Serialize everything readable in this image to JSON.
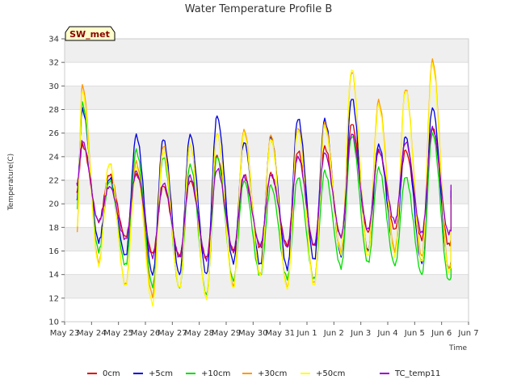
{
  "chart_data": {
    "type": "line",
    "title": "Water Temperature Profile B",
    "xlabel": "Time",
    "ylabel": "Temperature(C)",
    "station_label": "SW_met",
    "ylim": [
      10,
      34
    ],
    "yticks": [
      10,
      12,
      14,
      16,
      18,
      20,
      22,
      24,
      26,
      28,
      30,
      32,
      34
    ],
    "xlim": [
      "2023-05-23",
      "2023-06-07"
    ],
    "xticks": [
      {
        "date": "2023-05-23",
        "label": "May 23"
      },
      {
        "date": "2023-05-24",
        "label": "May 24"
      },
      {
        "date": "2023-05-25",
        "label": "May 25"
      },
      {
        "date": "2023-05-26",
        "label": "May 26"
      },
      {
        "date": "2023-05-27",
        "label": "May 27"
      },
      {
        "date": "2023-05-28",
        "label": "May 28"
      },
      {
        "date": "2023-05-29",
        "label": "May 29"
      },
      {
        "date": "2023-05-30",
        "label": "May 30"
      },
      {
        "date": "2023-05-31",
        "label": "May 31"
      },
      {
        "date": "2023-06-01",
        "label": "Jun 1"
      },
      {
        "date": "2023-06-02",
        "label": "Jun 2"
      },
      {
        "date": "2023-06-03",
        "label": "Jun 3"
      },
      {
        "date": "2023-06-04",
        "label": "Jun 4"
      },
      {
        "date": "2023-06-05",
        "label": "Jun 5"
      },
      {
        "date": "2023-06-06",
        "label": "Jun 6"
      },
      {
        "date": "2023-06-07",
        "label": "Jun 7"
      }
    ],
    "grid": true,
    "legend_position": "bottom",
    "series": [
      {
        "name": "0cm",
        "color": "#dd0000",
        "daily_min": [
          18.5,
          17.2,
          15.8,
          15.6,
          15.4,
          16.0,
          16.3,
          16.5,
          16.4,
          17.2,
          17.6,
          17.8,
          17.0,
          16.5,
          16.5
        ],
        "daily_max": [
          25.0,
          22.5,
          22.5,
          21.5,
          22.0,
          24.0,
          22.5,
          22.5,
          24.5,
          24.8,
          26.8,
          24.5,
          24.5,
          26.5,
          20.5
        ],
        "start": 21.0,
        "end": 20.0
      },
      {
        "name": "+5cm",
        "color": "#0000dd",
        "daily_min": [
          16.8,
          15.6,
          14.0,
          14.0,
          14.0,
          15.0,
          14.8,
          14.5,
          15.2,
          15.6,
          16.0,
          16.0,
          15.0,
          14.5,
          17.5
        ],
        "daily_max": [
          28.0,
          22.2,
          25.8,
          25.5,
          25.9,
          27.4,
          25.3,
          25.6,
          27.3,
          27.1,
          29.0,
          25.0,
          25.7,
          28.2,
          21.0
        ],
        "start": 20.3,
        "end": 21.0
      },
      {
        "name": "+10cm",
        "color": "#00dd00",
        "daily_min": [
          16.0,
          14.8,
          13.0,
          12.8,
          12.3,
          13.5,
          13.9,
          13.7,
          13.6,
          14.6,
          15.0,
          14.8,
          14.0,
          13.5,
          16.0
        ],
        "daily_max": [
          28.5,
          22.0,
          24.5,
          24.0,
          23.3,
          24.0,
          22.0,
          21.5,
          22.3,
          22.7,
          25.8,
          23.0,
          22.3,
          26.0,
          16.5
        ],
        "start": 19.5,
        "end": 16.0
      },
      {
        "name": "+30cm",
        "color": "#ff9900",
        "daily_min": [
          15.0,
          13.1,
          12.2,
          12.8,
          12.0,
          13.0,
          14.0,
          12.9,
          13.2,
          16.0,
          15.8,
          16.0,
          15.5,
          14.5,
          17.0
        ],
        "daily_max": [
          30.0,
          23.5,
          23.5,
          25.0,
          25.0,
          26.0,
          26.3,
          25.8,
          26.5,
          26.8,
          31.3,
          28.7,
          29.8,
          32.2,
          20.5
        ],
        "start": 17.5,
        "end": 18.0
      },
      {
        "name": "+50cm",
        "color": "#ffff00",
        "daily_min": [
          14.8,
          13.0,
          11.5,
          12.8,
          12.0,
          12.8,
          13.9,
          12.8,
          13.0,
          15.8,
          15.5,
          15.6,
          15.0,
          14.2,
          17.5
        ],
        "daily_max": [
          29.5,
          23.5,
          23.0,
          24.5,
          25.0,
          26.0,
          26.0,
          25.5,
          26.3,
          26.5,
          31.5,
          28.3,
          29.7,
          31.8,
          20.0
        ],
        "start": 18.0,
        "end": 17.5
      },
      {
        "name": "TC_temp11",
        "color": "#9900cc",
        "daily_min": [
          18.5,
          17.0,
          15.5,
          15.5,
          15.3,
          16.0,
          16.5,
          16.3,
          16.5,
          17.2,
          17.8,
          18.5,
          17.5,
          17.5,
          18.0
        ],
        "daily_max": [
          25.3,
          21.5,
          22.7,
          21.8,
          22.3,
          23.0,
          22.3,
          22.5,
          24.0,
          24.3,
          26.0,
          24.5,
          25.3,
          26.4,
          21.5
        ],
        "start": 21.6,
        "end": 21.5
      }
    ]
  }
}
